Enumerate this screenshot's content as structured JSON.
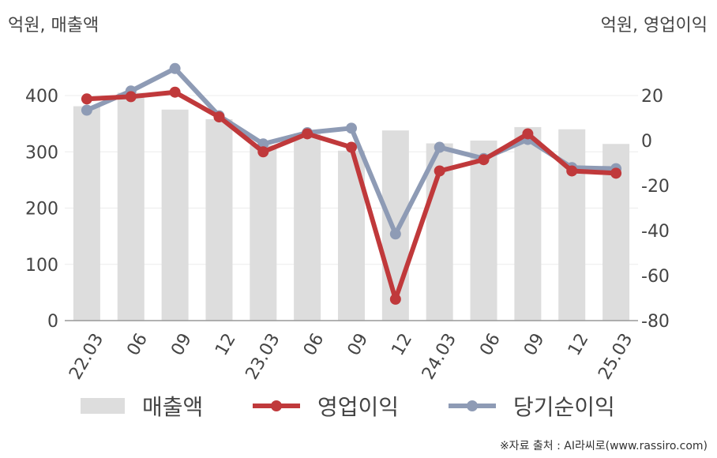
{
  "header": {
    "left_unit": "억원, 매출액",
    "right_unit": "억원, 영업이익"
  },
  "legend": {
    "items": [
      {
        "label": "매출액",
        "color": "#dddddd",
        "kind": "bar"
      },
      {
        "label": "영업이익",
        "color": "#c0393b",
        "kind": "line"
      },
      {
        "label": "당기순이익",
        "color": "#8e9bb5",
        "kind": "line"
      }
    ]
  },
  "source": "※자료 출처 : AI라씨로(www.rassiro.com)",
  "chart_data": {
    "type": "bar",
    "categories": [
      "22.03",
      "06",
      "09",
      "12",
      "23.03",
      "06",
      "09",
      "12",
      "24.03",
      "06",
      "09",
      "12",
      "25.03"
    ],
    "series": [
      {
        "name": "매출액",
        "type": "bar",
        "axis": "left",
        "color": "#dddddd",
        "values": [
          381,
          405,
          375,
          358,
          312,
          333,
          302,
          338,
          315,
          320,
          344,
          340,
          314
        ]
      },
      {
        "name": "영업이익",
        "type": "line",
        "axis": "right",
        "color": "#c0393b",
        "values": [
          18.5,
          19.5,
          21.5,
          10.5,
          -5,
          3,
          -3,
          -70.5,
          -13.5,
          -8.5,
          3,
          -13.5,
          -14.5
        ]
      },
      {
        "name": "당기순이익",
        "type": "line",
        "axis": "right",
        "color": "#8e9bb5",
        "values": [
          13.5,
          22,
          32,
          11,
          -1.5,
          3.5,
          5.5,
          -41.5,
          -3,
          -8,
          0.5,
          -12,
          -12.5
        ]
      }
    ],
    "y_left": {
      "min": 0,
      "max": 400,
      "ticks": [
        0,
        100,
        200,
        300,
        400
      ]
    },
    "y_right": {
      "min": -80,
      "max": 20,
      "ticks": [
        -80,
        -60,
        -40,
        -20,
        0,
        20
      ]
    },
    "grid": true,
    "legend_position": "bottom"
  }
}
